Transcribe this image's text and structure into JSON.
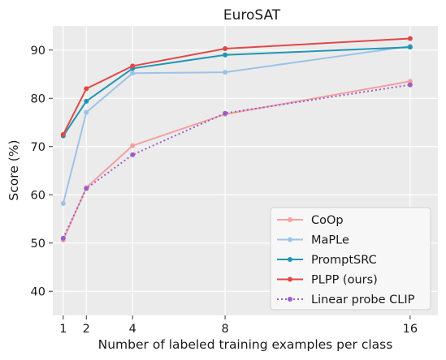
{
  "chart_data": {
    "type": "line",
    "title": "EuroSAT",
    "xlabel": "Number of labeled training examples per class",
    "ylabel": "Score (%)",
    "x": [
      1,
      2,
      4,
      8,
      16
    ],
    "xticks": [
      "1",
      "2",
      "4",
      "8",
      "16"
    ],
    "yticks": [
      "40",
      "50",
      "60",
      "70",
      "80",
      "90"
    ],
    "ylim": [
      35,
      95
    ],
    "xlim": [
      0.55,
      17.2
    ],
    "grid": true,
    "legend_position": "bottom-right",
    "series": [
      {
        "name": "CoOp",
        "color": "#f4a0a0",
        "style": "solid",
        "values": [
          50.6,
          61.5,
          70.2,
          76.7,
          83.5
        ]
      },
      {
        "name": "MaPLe",
        "color": "#9dc3e6",
        "style": "solid",
        "values": [
          58.2,
          77.1,
          85.2,
          85.4,
          90.8
        ]
      },
      {
        "name": "PromptSRC",
        "color": "#2196b3",
        "style": "solid",
        "values": [
          72.2,
          79.4,
          86.2,
          89.0,
          90.6
        ]
      },
      {
        "name": "PLPP (ours)",
        "color": "#e04848",
        "style": "solid",
        "values": [
          72.5,
          82.0,
          86.7,
          90.3,
          92.4
        ]
      },
      {
        "name": "Linear probe CLIP",
        "color": "#9a5fc7",
        "style": "dotted",
        "values": [
          51.0,
          61.3,
          68.3,
          76.9,
          82.8
        ]
      }
    ]
  }
}
